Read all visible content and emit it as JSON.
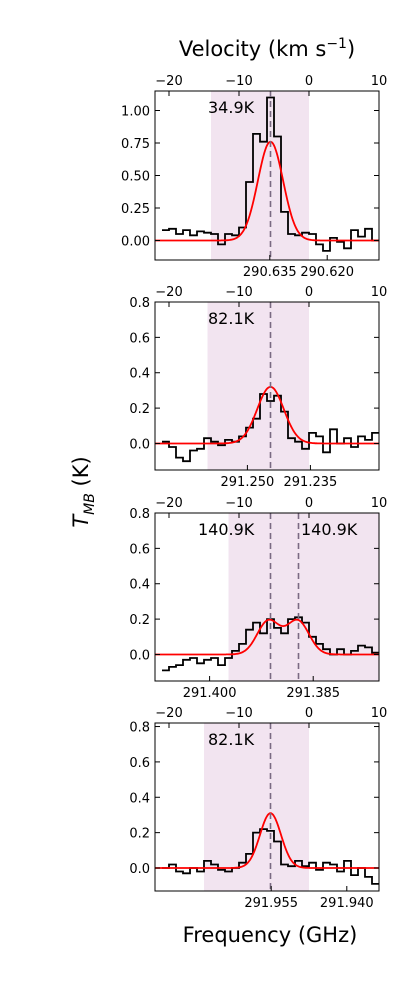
{
  "figure": {
    "top_label": "Velocity (km s$^{-1}$)",
    "ylabel": "T_MB (K)",
    "xlabel": "Frequency (GHz)"
  },
  "chart_data": [
    {
      "type": "line",
      "annotations": [
        "34.9K"
      ],
      "velocity_ticks": [
        -20,
        -10,
        0,
        10
      ],
      "velocity_range": [
        -22,
        10
      ],
      "frequency_ticks": [
        290.635,
        290.62
      ],
      "ylim": [
        -0.15,
        1.15
      ],
      "yticks": [
        0.0,
        0.25,
        0.5,
        0.75,
        1.0
      ],
      "shaded_velocity_band": [
        -14,
        0
      ],
      "dashed_velocity_lines": [
        -5.5
      ],
      "gaussian_fits": [
        {
          "center": -5.5,
          "amplitude": 0.76,
          "sigma": 1.8
        }
      ],
      "observed_spectrum": {
        "velocity": [
          -20.5,
          -19.5,
          -18.5,
          -17.5,
          -16.5,
          -15.5,
          -14.5,
          -13.5,
          -12.5,
          -11.5,
          -10.5,
          -9.5,
          -8.5,
          -7.5,
          -6.5,
          -5.5,
          -4.5,
          -3.5,
          -2.5,
          -1.5,
          -0.5,
          0.5,
          1.5,
          2.5,
          3.5,
          4.5,
          5.5,
          6.5,
          7.5,
          8.5,
          9.5
        ],
        "tmb": [
          0.08,
          0.09,
          0.05,
          0.08,
          0.04,
          0.07,
          0.06,
          0.05,
          -0.03,
          0.05,
          0.04,
          0.1,
          0.45,
          0.82,
          0.76,
          1.1,
          0.8,
          0.22,
          0.05,
          0.04,
          0.06,
          0.05,
          -0.03,
          -0.08,
          0.02,
          -0.01,
          -0.06,
          0.08,
          0.03,
          0.09,
          0.0
        ]
      }
    },
    {
      "type": "line",
      "annotations": [
        "82.1K"
      ],
      "velocity_ticks": [
        -20,
        -10,
        0,
        10
      ],
      "velocity_range": [
        -22,
        10
      ],
      "frequency_ticks": [
        291.25,
        291.235
      ],
      "ylim": [
        -0.15,
        0.8
      ],
      "yticks": [
        0.0,
        0.2,
        0.4,
        0.6,
        0.8
      ],
      "shaded_velocity_band": [
        -14.5,
        0
      ],
      "dashed_velocity_lines": [
        -5.5
      ],
      "gaussian_fits": [
        {
          "center": -5.5,
          "amplitude": 0.32,
          "sigma": 1.9
        }
      ],
      "observed_spectrum": {
        "velocity": [
          -20.5,
          -19.5,
          -18.5,
          -17.5,
          -16.5,
          -15.5,
          -14.5,
          -13.5,
          -12.5,
          -11.5,
          -10.5,
          -9.5,
          -8.5,
          -7.5,
          -6.5,
          -5.5,
          -4.5,
          -3.5,
          -2.5,
          -1.5,
          -0.5,
          0.5,
          1.5,
          2.5,
          3.5,
          4.5,
          5.5,
          6.5,
          7.5,
          8.5,
          9.5
        ],
        "tmb": [
          0.01,
          -0.02,
          -0.08,
          -0.1,
          -0.04,
          -0.03,
          0.03,
          0.01,
          -0.01,
          0.02,
          0.01,
          0.04,
          0.09,
          0.14,
          0.28,
          0.24,
          0.27,
          0.18,
          0.03,
          0.01,
          -0.03,
          0.06,
          0.04,
          -0.05,
          0.08,
          0.0,
          0.03,
          -0.02,
          0.04,
          0.02,
          0.06
        ]
      }
    },
    {
      "type": "line",
      "annotations": [
        "140.9K",
        "140.9K"
      ],
      "velocity_ticks": [
        -20,
        -10,
        0,
        10
      ],
      "velocity_range": [
        -22,
        10
      ],
      "frequency_ticks": [
        291.4,
        291.385
      ],
      "ylim": [
        -0.15,
        0.8
      ],
      "yticks": [
        0.0,
        0.2,
        0.4,
        0.6,
        0.8
      ],
      "shaded_velocity_band": [
        -11.5,
        10
      ],
      "dashed_velocity_lines": [
        -5.5,
        -1.5
      ],
      "gaussian_fits": [
        {
          "center": -5.8,
          "amplitude": 0.19,
          "sigma": 1.6
        },
        {
          "center": -1.6,
          "amplitude": 0.19,
          "sigma": 1.6
        }
      ],
      "observed_spectrum": {
        "velocity": [
          -20.5,
          -19.5,
          -18.5,
          -17.5,
          -16.5,
          -15.5,
          -14.5,
          -13.5,
          -12.5,
          -11.5,
          -10.5,
          -9.5,
          -8.5,
          -7.5,
          -6.5,
          -5.5,
          -4.5,
          -3.5,
          -2.5,
          -1.5,
          -0.5,
          0.5,
          1.5,
          2.5,
          3.5,
          4.5,
          5.5,
          6.5,
          7.5,
          8.5,
          9.5
        ],
        "tmb": [
          -0.09,
          -0.07,
          -0.06,
          -0.03,
          -0.02,
          -0.05,
          -0.03,
          -0.02,
          -0.06,
          -0.02,
          0.02,
          0.06,
          0.14,
          0.18,
          0.12,
          0.2,
          0.15,
          0.12,
          0.2,
          0.21,
          0.18,
          0.1,
          0.06,
          0.03,
          0.0,
          0.03,
          0.0,
          0.02,
          0.05,
          0.04,
          0.01
        ]
      }
    },
    {
      "type": "line",
      "annotations": [
        "82.1K"
      ],
      "velocity_ticks": [
        -20,
        -10,
        0,
        10
      ],
      "velocity_range": [
        -22,
        10
      ],
      "frequency_ticks": [
        291.955,
        291.94
      ],
      "ylim": [
        -0.13,
        0.82
      ],
      "yticks": [
        0.0,
        0.2,
        0.4,
        0.6,
        0.8
      ],
      "shaded_velocity_band": [
        -15,
        0
      ],
      "dashed_velocity_lines": [
        -5.5
      ],
      "gaussian_fits": [
        {
          "center": -5.5,
          "amplitude": 0.31,
          "sigma": 1.5
        }
      ],
      "observed_spectrum": {
        "velocity": [
          -20.5,
          -19.5,
          -18.5,
          -17.5,
          -16.5,
          -15.5,
          -14.5,
          -13.5,
          -12.5,
          -11.5,
          -10.5,
          -9.5,
          -8.5,
          -7.5,
          -6.5,
          -5.5,
          -4.5,
          -3.5,
          -2.5,
          -1.5,
          -0.5,
          0.5,
          1.5,
          2.5,
          3.5,
          4.5,
          5.5,
          6.5,
          7.5,
          8.5,
          9.5
        ],
        "tmb": [
          0.0,
          0.02,
          -0.02,
          -0.03,
          0.0,
          -0.02,
          0.04,
          0.02,
          -0.01,
          -0.02,
          0.0,
          0.03,
          0.08,
          0.2,
          0.22,
          0.21,
          0.15,
          0.02,
          0.01,
          0.04,
          0.01,
          0.03,
          -0.01,
          0.03,
          0.02,
          -0.02,
          0.04,
          -0.04,
          0.0,
          -0.05,
          -0.09
        ]
      }
    }
  ]
}
